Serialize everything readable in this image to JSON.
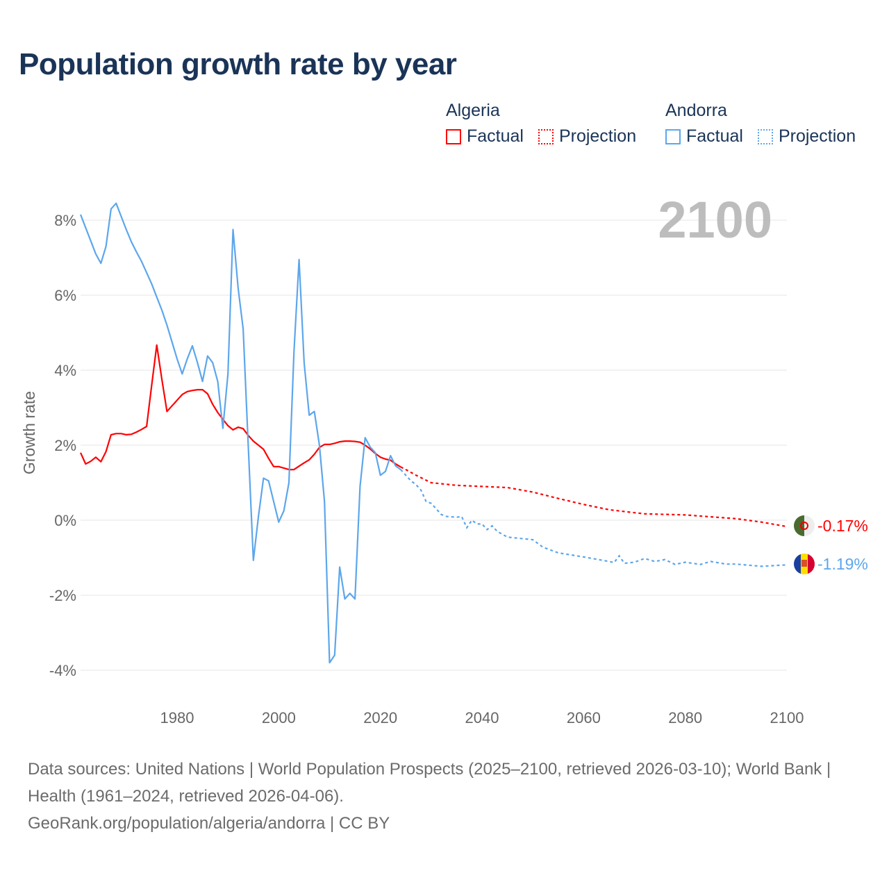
{
  "title": "Population growth rate by year",
  "legend": {
    "groups": [
      {
        "name": "Algeria",
        "factual": "Factual",
        "projection": "Projection",
        "color": "#ff0000"
      },
      {
        "name": "Andorra",
        "factual": "Factual",
        "projection": "Projection",
        "color": "#5ca6ec"
      }
    ]
  },
  "year_label": "2100",
  "footer": {
    "sources": "Data sources: United Nations | World Population Prospects (2025–2100, retrieved 2026-03-10); World Bank | Health (1961–2024, retrieved 2026-04-06).",
    "credit": "GeoRank.org/population/algeria/andorra | CC BY"
  },
  "chart_data": {
    "type": "line",
    "title": "Population growth rate by year",
    "xlabel": "",
    "ylabel": "Growth rate",
    "xlim": [
      1961,
      2100
    ],
    "ylim": [
      -5,
      9
    ],
    "x_ticks": [
      1980,
      2000,
      2020,
      2040,
      2060,
      2080,
      2100
    ],
    "x_tick_labels": [
      "1980",
      "2000",
      "2020",
      "2040",
      "2060",
      "2080",
      "2100"
    ],
    "y_ticks": [
      8,
      6,
      4,
      2,
      0,
      -2,
      -4
    ],
    "y_tick_labels": [
      "8%",
      "6%",
      "4%",
      "2%",
      "0%",
      "-2%",
      "-4%"
    ],
    "grid": true,
    "series": [
      {
        "name": "Algeria",
        "color": "#ff0000",
        "end_label": "-0.17%",
        "factual": {
          "x": [
            1961,
            1962,
            1963,
            1964,
            1965,
            1966,
            1967,
            1968,
            1969,
            1970,
            1971,
            1972,
            1973,
            1974,
            1975,
            1976,
            1977,
            1978,
            1979,
            1980,
            1981,
            1982,
            1983,
            1984,
            1985,
            1986,
            1987,
            1988,
            1989,
            1990,
            1991,
            1992,
            1993,
            1994,
            1995,
            1996,
            1997,
            1998,
            1999,
            2000,
            2001,
            2002,
            2003,
            2004,
            2005,
            2006,
            2007,
            2008,
            2009,
            2010,
            2011,
            2012,
            2013,
            2014,
            2015,
            2016,
            2017,
            2018,
            2019,
            2020,
            2021,
            2022,
            2023,
            2024
          ],
          "y": [
            1.8,
            1.5,
            1.57,
            1.68,
            1.56,
            1.83,
            2.28,
            2.31,
            2.31,
            2.28,
            2.29,
            2.35,
            2.42,
            2.5,
            3.6,
            4.67,
            3.75,
            2.9,
            3.05,
            3.2,
            3.35,
            3.43,
            3.46,
            3.48,
            3.48,
            3.37,
            3.09,
            2.87,
            2.69,
            2.52,
            2.41,
            2.48,
            2.44,
            2.26,
            2.11,
            2.0,
            1.89,
            1.65,
            1.43,
            1.43,
            1.39,
            1.35,
            1.35,
            1.44,
            1.53,
            1.61,
            1.76,
            1.94,
            2.02,
            2.02,
            2.05,
            2.09,
            2.11,
            2.11,
            2.1,
            2.08,
            2.0,
            1.9,
            1.78,
            1.68,
            1.63,
            1.6,
            1.5,
            1.42
          ]
        },
        "projection": {
          "x": [
            2024,
            2025,
            2027,
            2030,
            2035,
            2040,
            2045,
            2050,
            2055,
            2060,
            2065,
            2070,
            2072,
            2075,
            2080,
            2085,
            2090,
            2095,
            2100
          ],
          "y": [
            1.42,
            1.35,
            1.2,
            1.0,
            0.93,
            0.9,
            0.87,
            0.75,
            0.58,
            0.42,
            0.28,
            0.2,
            0.17,
            0.16,
            0.14,
            0.09,
            0.04,
            -0.05,
            -0.17
          ]
        }
      },
      {
        "name": "Andorra",
        "color": "#5ca6ec",
        "end_label": "-1.19%",
        "factual": {
          "x": [
            1961,
            1962,
            1963,
            1964,
            1965,
            1966,
            1967,
            1968,
            1969,
            1970,
            1971,
            1972,
            1973,
            1974,
            1975,
            1976,
            1977,
            1978,
            1979,
            1980,
            1981,
            1982,
            1983,
            1984,
            1985,
            1986,
            1987,
            1988,
            1989,
            1990,
            1991,
            1992,
            1993,
            1994,
            1995,
            1996,
            1997,
            1998,
            1999,
            2000,
            2001,
            2002,
            2003,
            2004,
            2005,
            2006,
            2007,
            2008,
            2009,
            2010,
            2011,
            2012,
            2013,
            2014,
            2015,
            2016,
            2017,
            2018,
            2019,
            2020,
            2021,
            2022,
            2023,
            2024
          ],
          "y": [
            8.15,
            7.8,
            7.45,
            7.1,
            6.85,
            7.3,
            8.3,
            8.45,
            8.1,
            7.75,
            7.42,
            7.15,
            6.9,
            6.6,
            6.3,
            5.95,
            5.6,
            5.2,
            4.75,
            4.3,
            3.9,
            4.3,
            4.65,
            4.2,
            3.7,
            4.38,
            4.2,
            3.7,
            2.45,
            3.9,
            7.75,
            6.2,
            5.1,
            2.0,
            -1.07,
            0.1,
            1.12,
            1.05,
            0.5,
            -0.05,
            0.25,
            1.0,
            4.5,
            6.95,
            4.2,
            2.8,
            2.9,
            2.0,
            0.5,
            -3.8,
            -3.6,
            -1.25,
            -2.1,
            -1.95,
            -2.1,
            0.9,
            2.2,
            1.95,
            1.8,
            1.2,
            1.3,
            1.72,
            1.45,
            1.35
          ]
        },
        "projection": {
          "x": [
            2024,
            2025,
            2026,
            2027,
            2028,
            2029,
            2030,
            2031,
            2032,
            2033,
            2035,
            2036,
            2037,
            2038,
            2039,
            2040,
            2041,
            2042,
            2043,
            2045,
            2050,
            2052,
            2055,
            2060,
            2065,
            2066,
            2067,
            2068,
            2070,
            2072,
            2074,
            2076,
            2078,
            2080,
            2083,
            2085,
            2088,
            2090,
            2095,
            2100
          ],
          "y": [
            1.35,
            1.2,
            1.05,
            0.95,
            0.8,
            0.5,
            0.45,
            0.3,
            0.15,
            0.1,
            0.08,
            0.1,
            -0.2,
            0.0,
            -0.1,
            -0.1,
            -0.25,
            -0.15,
            -0.3,
            -0.45,
            -0.52,
            -0.72,
            -0.87,
            -0.98,
            -1.1,
            -1.13,
            -0.95,
            -1.15,
            -1.12,
            -1.02,
            -1.1,
            -1.05,
            -1.18,
            -1.12,
            -1.18,
            -1.1,
            -1.17,
            -1.17,
            -1.23,
            -1.19
          ]
        }
      }
    ]
  }
}
